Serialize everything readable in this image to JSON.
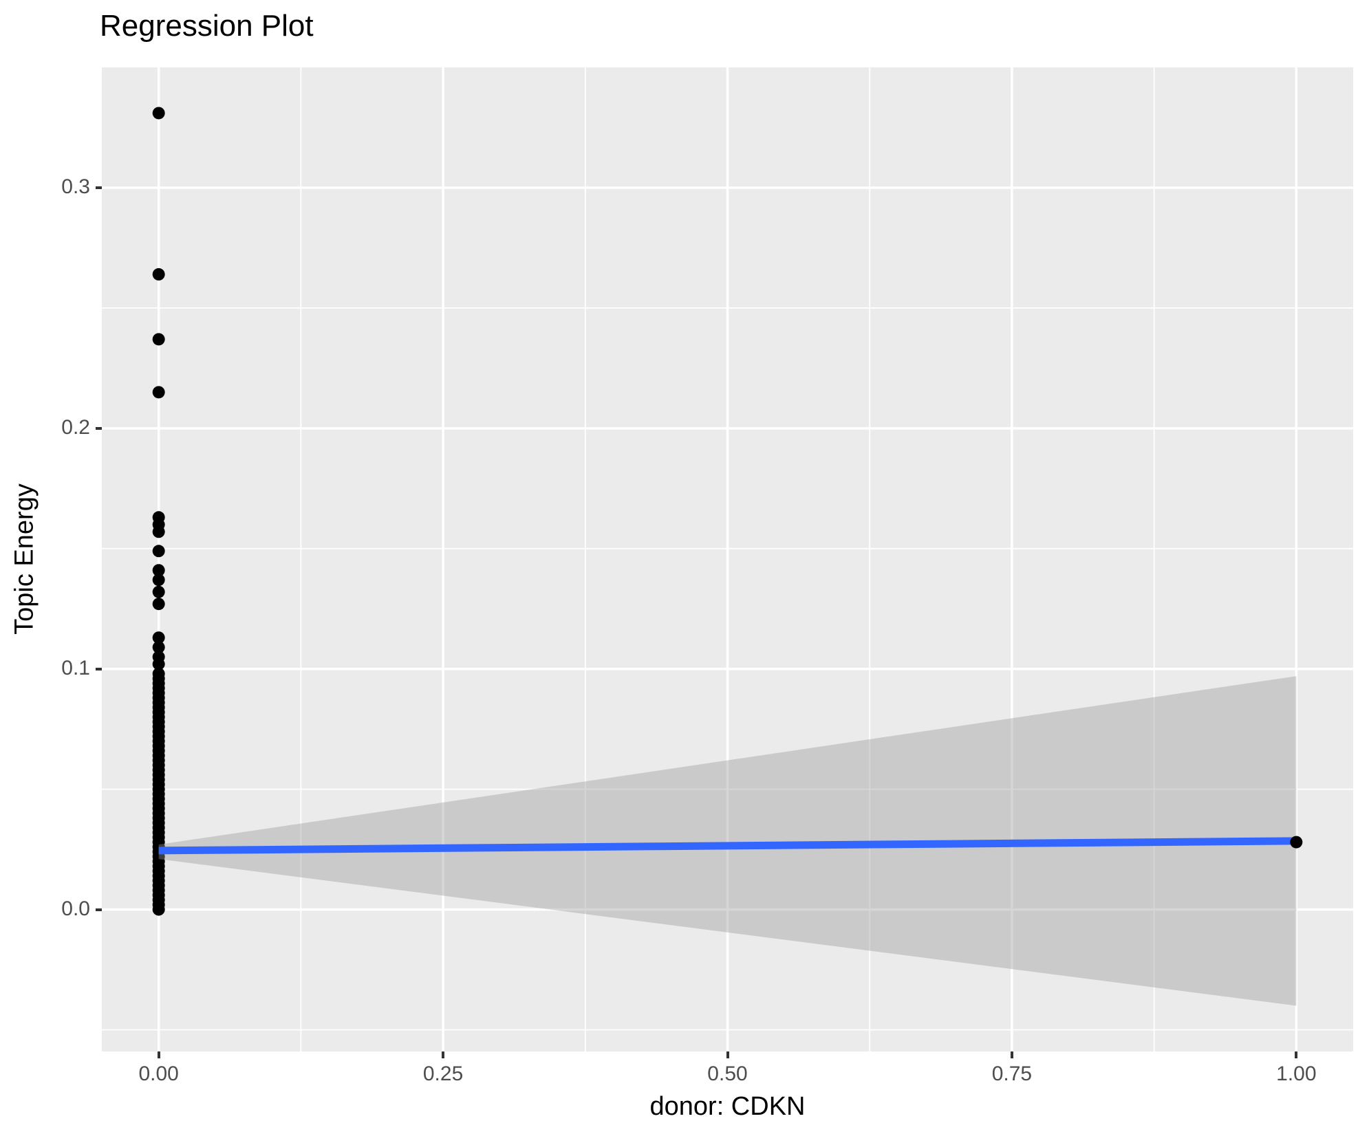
{
  "title": "Regression Plot",
  "colors": {
    "background": "#FFFFFF",
    "panel_background": "#EBEBEB",
    "grid": "#FFFFFF",
    "point": "#000000",
    "regression_line": "#3366FF",
    "ribbon_color": "#999999",
    "ribbon_alpha": 0.4,
    "tick_mark": "#333333",
    "tick_label": "#4D4D4D",
    "text": "#000000"
  },
  "chart_data": {
    "type": "scatter",
    "title": "Regression Plot",
    "xlabel": "donor: CDKN",
    "ylabel": "Topic Energy",
    "xlim": [
      -0.05,
      1.05
    ],
    "ylim": [
      -0.059,
      0.35
    ],
    "grid": "on",
    "legend": "none",
    "x_ticks": [
      {
        "value": 0.0,
        "label": "0.00"
      },
      {
        "value": 0.25,
        "label": "0.25"
      },
      {
        "value": 0.5,
        "label": "0.50"
      },
      {
        "value": 0.75,
        "label": "0.75"
      },
      {
        "value": 1.0,
        "label": "1.00"
      }
    ],
    "y_ticks": [
      {
        "value": 0.0,
        "label": "0.0"
      },
      {
        "value": 0.1,
        "label": "0.1"
      },
      {
        "value": 0.2,
        "label": "0.2"
      },
      {
        "value": 0.3,
        "label": "0.3"
      }
    ],
    "x_minor_gridlines": [
      0.125,
      0.375,
      0.625,
      0.875
    ],
    "y_minor_gridlines": [
      -0.05,
      0.05,
      0.15,
      0.25
    ],
    "point_radius_px": 9,
    "points_back_x": 0.0,
    "points_back_y": [
      0.0,
      0.002,
      0.004,
      0.006,
      0.008,
      0.01,
      0.012,
      0.014,
      0.016,
      0.018,
      0.02,
      0.022,
      0.024,
      0.026,
      0.028,
      0.03,
      0.032,
      0.034,
      0.036,
      0.038,
      0.04,
      0.042,
      0.044,
      0.046,
      0.048,
      0.05,
      0.052,
      0.054,
      0.056,
      0.058,
      0.06,
      0.062,
      0.064,
      0.066,
      0.068,
      0.07,
      0.072,
      0.074,
      0.076,
      0.078,
      0.08,
      0.082,
      0.084,
      0.086,
      0.088,
      0.09,
      0.092,
      0.094,
      0.096,
      0.098,
      0.102,
      0.105,
      0.109,
      0.113,
      0.127,
      0.132,
      0.137,
      0.141,
      0.149,
      0.157,
      0.16,
      0.163,
      0.215,
      0.237,
      0.264,
      0.331
    ],
    "points_front": [
      {
        "x": 1.0,
        "y": 0.028
      }
    ],
    "regression_line": {
      "x1": 0.0,
      "y1": 0.0245,
      "x2": 1.0,
      "y2": 0.0285
    },
    "ribbon": {
      "x": [
        0.0,
        1.0
      ],
      "upper": [
        0.027,
        0.097
      ],
      "lower": [
        0.021,
        -0.04
      ]
    }
  }
}
